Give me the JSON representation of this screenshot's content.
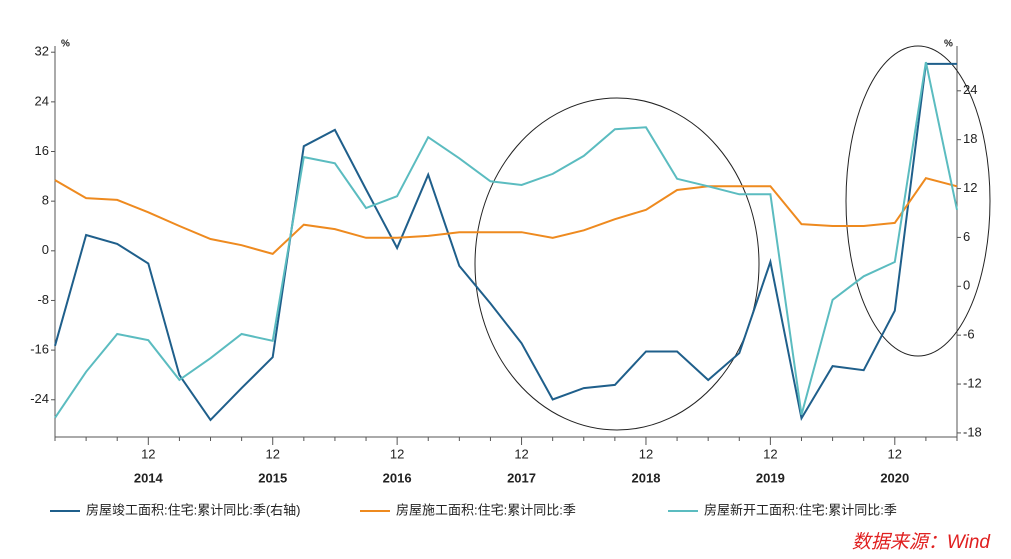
{
  "chart_data": {
    "type": "line",
    "categories": [
      null,
      null,
      null,
      "12",
      null,
      null,
      null,
      "12",
      null,
      null,
      null,
      "12",
      null,
      null,
      null,
      "12",
      null,
      null,
      null,
      "12",
      null,
      null,
      null,
      "12",
      null,
      null,
      null,
      "12",
      null,
      null
    ],
    "x_group_labels": [
      "2014",
      "2015",
      "2016",
      "2017",
      "2018",
      "2019",
      "2020"
    ],
    "ylabel": "%",
    "y2label": "%",
    "ylim": [
      -30,
      33
    ],
    "yticks": [
      32,
      24,
      16,
      8,
      0,
      -8,
      -16,
      -24
    ],
    "y2lim": [
      -18.5,
      29.5
    ],
    "y2ticks": [
      24,
      18,
      12,
      6,
      0,
      -6,
      -12,
      -18
    ],
    "series": [
      {
        "name": "房屋竣工面积:住宅:累计同比:季(右轴)",
        "color": "#1f5f8b",
        "axis": "y2",
        "values": [
          -7.3,
          6.3,
          5.2,
          2.8,
          -10.9,
          -16.4,
          -12.5,
          -8.7,
          17.2,
          19.2,
          11.9,
          4.7,
          13.7,
          2.5,
          -2.1,
          -7.0,
          -13.9,
          -12.5,
          -12.1,
          -8.0,
          -8.0,
          -11.5,
          -8.2,
          3.0,
          -16.2,
          -9.8,
          -10.3,
          -3.0,
          27.3,
          27.3
        ]
      },
      {
        "name": "房屋施工面积:住宅:累计同比:季",
        "color": "#ee8a1f",
        "values": [
          11.4,
          8.5,
          8.2,
          6.2,
          4.0,
          1.9,
          0.9,
          -0.5,
          4.2,
          3.5,
          2.1,
          2.1,
          2.4,
          3.0,
          3.0,
          3.0,
          2.1,
          3.3,
          5.1,
          6.6,
          9.8,
          10.4,
          10.4,
          10.4,
          4.3,
          4.0,
          4.0,
          4.5,
          11.7,
          10.4
        ]
      },
      {
        "name": "房屋新开工面积:住宅:累计同比:季",
        "color": "#5bbcc0",
        "values": [
          -26.9,
          -19.5,
          -13.4,
          -14.4,
          -20.8,
          -17.3,
          -13.4,
          -14.5,
          15.1,
          14.1,
          6.9,
          8.8,
          18.3,
          14.9,
          11.2,
          10.6,
          12.4,
          15.3,
          19.6,
          19.9,
          11.6,
          10.4,
          9.1,
          9.1,
          -26.4,
          -7.9,
          -4.1,
          -1.8,
          30.4,
          6.6
        ]
      }
    ],
    "source": "数据来源：Wind"
  }
}
